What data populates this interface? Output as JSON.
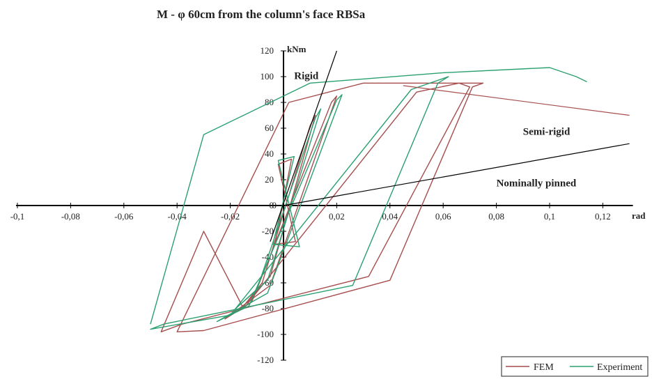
{
  "chart_data": {
    "type": "line",
    "title": "M - φ  60cm  from  the  column's  face  RBSa",
    "xlabel": "rad",
    "ylabel": "kNm",
    "xlim": [
      -0.1,
      0.13
    ],
    "ylim": [
      -120,
      120
    ],
    "x_ticks": [
      -0.1,
      -0.08,
      -0.06,
      -0.04,
      -0.02,
      0,
      0.02,
      0.04,
      0.06,
      0.08,
      0.1,
      0.12
    ],
    "x_tick_labels": [
      "-0,1",
      "-0,08",
      "-0,06",
      "-0,04",
      "-0,02",
      "0",
      "0,02",
      "0,04",
      "0,06",
      "0,08",
      "0,1",
      "0,12"
    ],
    "y_ticks": [
      -120,
      -100,
      -80,
      -60,
      -40,
      -20,
      0,
      20,
      40,
      60,
      80,
      100,
      120
    ],
    "y_tick_labels": [
      "-120",
      "-100",
      "-80",
      "-60",
      "-40",
      "-20",
      "0",
      "20",
      "40",
      "60",
      "80",
      "100",
      "120"
    ],
    "grid": false,
    "legend_position": "bottom-right",
    "annotations": [
      {
        "text": "Rigid",
        "x": 0.004,
        "y": 98
      },
      {
        "text": "Semi-rigid",
        "x": 0.09,
        "y": 55
      },
      {
        "text": "Nominally pinned",
        "x": 0.08,
        "y": 15
      }
    ],
    "boundary_lines": [
      {
        "name": "rigid",
        "x": [
          -0.005,
          0.02
        ],
        "y": [
          -28,
          120
        ]
      },
      {
        "name": "semi_rigid",
        "x": [
          0,
          0.13
        ],
        "y": [
          0,
          48
        ]
      },
      {
        "name": "nominally_pinned_envelope",
        "x": [
          0.045,
          0.13
        ],
        "y": [
          93,
          70
        ]
      }
    ],
    "series": [
      {
        "name": "FEM",
        "color": "#a64d4d",
        "loops": [
          {
            "x": [
              -0.003,
              0.003,
              -0.002,
              0.0045,
              -0.003
            ],
            "y": [
              -28,
              36,
              32,
              -28,
              -30
            ]
          },
          {
            "x": [
              -0.008,
              0.01,
              0.012,
              -0.005,
              -0.015,
              -0.008
            ],
            "y": [
              -60,
              62,
              70,
              -55,
              -78,
              -60
            ]
          },
          {
            "x": [
              -0.012,
              0.018,
              0.02,
              -0.005,
              -0.022,
              -0.012
            ],
            "y": [
              -75,
              80,
              85,
              -62,
              -88,
              -75
            ]
          },
          {
            "x": [
              -0.015,
              0.05,
              0.066,
              0.07,
              0.032,
              -0.038,
              -0.046,
              -0.03,
              -0.015
            ],
            "y": [
              -80,
              88,
              95,
              92,
              -55,
              -92,
              -98,
              -20,
              -80
            ]
          },
          {
            "x": [
              0.002,
              0.03,
              0.075,
              0.071,
              0.04,
              -0.03,
              -0.04,
              0.002
            ],
            "y": [
              80,
              95,
              95,
              92,
              -58,
              -97,
              -98,
              80
            ]
          }
        ]
      },
      {
        "name": "Experiment",
        "color": "#2aa070",
        "loops": [
          {
            "x": [
              -0.004,
              0.004,
              -0.002,
              0.006,
              -0.004
            ],
            "y": [
              -30,
              38,
              35,
              -32,
              -30
            ]
          },
          {
            "x": [
              -0.01,
              0.012,
              0.014,
              -0.006,
              -0.018,
              -0.01
            ],
            "y": [
              -65,
              68,
              75,
              -58,
              -80,
              -65
            ]
          },
          {
            "x": [
              -0.013,
              0.02,
              0.022,
              -0.006,
              -0.025,
              -0.013
            ],
            "y": [
              -78,
              82,
              86,
              -68,
              -90,
              -78
            ]
          },
          {
            "x": [
              -0.02,
              0.048,
              0.062,
              0.058,
              0.026,
              -0.045,
              -0.05,
              -0.02
            ],
            "y": [
              -85,
              90,
              100,
              95,
              -62,
              -92,
              -96,
              -85
            ]
          },
          {
            "x": [
              -0.05,
              -0.03,
              0.01,
              0.06,
              0.1,
              0.11,
              0.114
            ],
            "y": [
              -92,
              55,
              95,
              103,
              107,
              100,
              96
            ]
          }
        ]
      }
    ]
  }
}
